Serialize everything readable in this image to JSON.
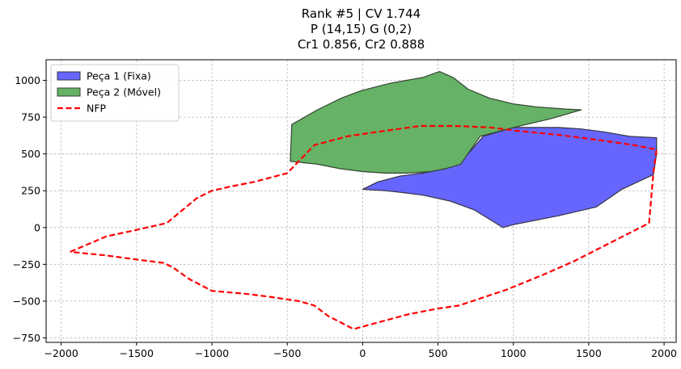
{
  "chart_data": {
    "type": "polygon-plot",
    "title_lines": [
      "Rank #5 | CV 1.744",
      "P (14,15) G (0,2)",
      "Cr1 0.856, Cr2 0.888"
    ],
    "xlim": [
      -2100,
      2080
    ],
    "ylim": [
      -780,
      1140
    ],
    "xticks": [
      -2000,
      -1500,
      -1000,
      -500,
      0,
      500,
      1000,
      1500,
      2000
    ],
    "yticks": [
      -750,
      -500,
      -250,
      0,
      250,
      500,
      750,
      1000
    ],
    "grid": true,
    "legend_position": "top-left",
    "series": [
      {
        "name": "Peça 1 (Fixa)",
        "kind": "polygon",
        "fill": "#6666ff",
        "edge": "#333344",
        "points": [
          [
            0,
            260
          ],
          [
            100,
            310
          ],
          [
            250,
            350
          ],
          [
            400,
            370
          ],
          [
            550,
            400
          ],
          [
            640,
            430
          ],
          [
            800,
            620
          ],
          [
            1000,
            680
          ],
          [
            1300,
            680
          ],
          [
            1450,
            670
          ],
          [
            1600,
            650
          ],
          [
            1770,
            620
          ],
          [
            1950,
            610
          ],
          [
            1950,
            500
          ],
          [
            1930,
            360
          ],
          [
            1720,
            260
          ],
          [
            1550,
            140
          ],
          [
            1300,
            80
          ],
          [
            1000,
            20
          ],
          [
            930,
            0
          ],
          [
            740,
            120
          ],
          [
            580,
            180
          ],
          [
            400,
            220
          ],
          [
            250,
            240
          ],
          [
            150,
            250
          ],
          [
            0,
            260
          ]
        ]
      },
      {
        "name": "Peça 2 (Móvel)",
        "kind": "polygon",
        "fill": "#66b266",
        "edge": "#334433",
        "points": [
          [
            -470,
            700
          ],
          [
            -300,
            800
          ],
          [
            -140,
            880
          ],
          [
            -10,
            930
          ],
          [
            180,
            980
          ],
          [
            400,
            1020
          ],
          [
            510,
            1060
          ],
          [
            600,
            1020
          ],
          [
            700,
            940
          ],
          [
            840,
            880
          ],
          [
            1000,
            840
          ],
          [
            1150,
            820
          ],
          [
            1350,
            805
          ],
          [
            1450,
            800
          ],
          [
            1250,
            740
          ],
          [
            1000,
            680
          ],
          [
            780,
            620
          ],
          [
            650,
            430
          ],
          [
            550,
            400
          ],
          [
            450,
            380
          ],
          [
            300,
            370
          ],
          [
            150,
            370
          ],
          [
            0,
            380
          ],
          [
            -150,
            400
          ],
          [
            -300,
            430
          ],
          [
            -480,
            450
          ],
          [
            -470,
            700
          ]
        ]
      },
      {
        "name": "NFP",
        "kind": "line",
        "color": "#ff0000",
        "dashed": true,
        "points": [
          [
            -1940,
            -165
          ],
          [
            -1700,
            -60
          ],
          [
            -1520,
            -20
          ],
          [
            -1300,
            30
          ],
          [
            -1100,
            200
          ],
          [
            -1000,
            250
          ],
          [
            -870,
            280
          ],
          [
            -720,
            310
          ],
          [
            -500,
            370
          ],
          [
            -320,
            560
          ],
          [
            -100,
            620
          ],
          [
            100,
            650
          ],
          [
            380,
            690
          ],
          [
            620,
            690
          ],
          [
            850,
            680
          ],
          [
            1000,
            660
          ],
          [
            1300,
            630
          ],
          [
            1600,
            590
          ],
          [
            1800,
            560
          ],
          [
            1950,
            530
          ],
          [
            1930,
            380
          ],
          [
            1900,
            30
          ],
          [
            1650,
            -100
          ],
          [
            1400,
            -230
          ],
          [
            1200,
            -320
          ],
          [
            960,
            -420
          ],
          [
            640,
            -530
          ],
          [
            500,
            -550
          ],
          [
            300,
            -590
          ],
          [
            -60,
            -690
          ],
          [
            -230,
            -600
          ],
          [
            -320,
            -530
          ],
          [
            -420,
            -500
          ],
          [
            -620,
            -470
          ],
          [
            -780,
            -450
          ],
          [
            -1000,
            -430
          ],
          [
            -1150,
            -350
          ],
          [
            -1260,
            -270
          ],
          [
            -1320,
            -240
          ],
          [
            -1480,
            -220
          ],
          [
            -1700,
            -190
          ],
          [
            -1940,
            -165
          ]
        ]
      }
    ]
  }
}
